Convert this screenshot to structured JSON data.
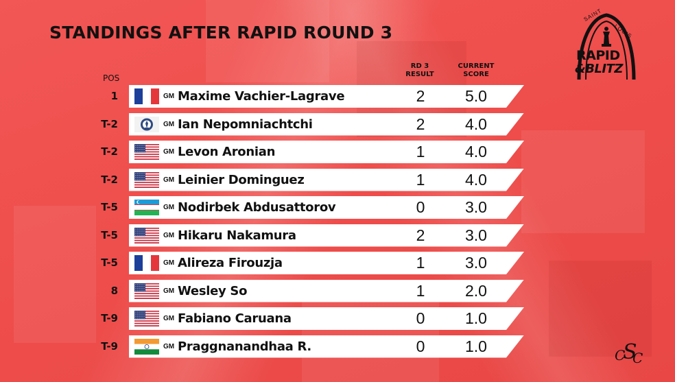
{
  "title": "STANDINGS AFTER RAPID ROUND 3",
  "headers": {
    "pos": "POS",
    "rd3_line1": "RD 3",
    "rd3_line2": "RESULT",
    "score_line1": "CURRENT",
    "score_line2": "SCORE"
  },
  "logo": {
    "saint": "SAINT",
    "louis": "LOUIS",
    "rapid": "RAPID",
    "blitz": "&BLITZ"
  },
  "footer_logo": {
    "letters": [
      "C",
      "S",
      "C"
    ]
  },
  "colors": {
    "background": "#ee4e4c",
    "row": "#ffffff",
    "text": "#111111"
  },
  "title_prefix": "GM",
  "standings": [
    {
      "pos": "1",
      "flag": "france-flag",
      "name": "Maxime Vachier-Lagrave",
      "result": "2",
      "score": "5.0"
    },
    {
      "pos": "T-2",
      "flag": "fide-flag",
      "name": "Ian Nepomniachtchi",
      "result": "2",
      "score": "4.0"
    },
    {
      "pos": "T-2",
      "flag": "usa-flag",
      "name": "Levon Aronian",
      "result": "1",
      "score": "4.0"
    },
    {
      "pos": "T-2",
      "flag": "usa-flag",
      "name": "Leinier Dominguez",
      "result": "1",
      "score": "4.0"
    },
    {
      "pos": "T-5",
      "flag": "uzbekistan-flag",
      "name": "Nodirbek Abdusattorov",
      "result": "0",
      "score": "3.0"
    },
    {
      "pos": "T-5",
      "flag": "usa-flag",
      "name": "Hikaru Nakamura",
      "result": "2",
      "score": "3.0"
    },
    {
      "pos": "T-5",
      "flag": "france-flag",
      "name": "Alireza Firouzja",
      "result": "1",
      "score": "3.0"
    },
    {
      "pos": "8",
      "flag": "usa-flag",
      "name": "Wesley So",
      "result": "1",
      "score": "2.0"
    },
    {
      "pos": "T-9",
      "flag": "usa-flag",
      "name": "Fabiano Caruana",
      "result": "0",
      "score": "1.0"
    },
    {
      "pos": "T-9",
      "flag": "india-flag",
      "name": "Praggnanandhaa R.",
      "result": "0",
      "score": "1.0"
    }
  ]
}
